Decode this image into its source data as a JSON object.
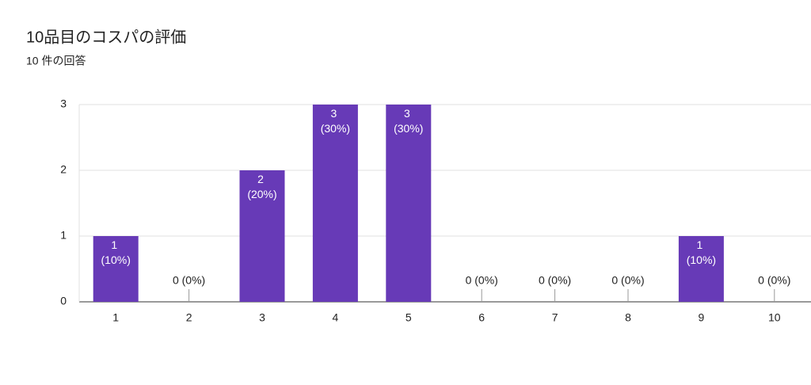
{
  "chart_data": {
    "type": "bar",
    "title": "10品目のコスパの評価",
    "subtitle": "10 件の回答",
    "categories": [
      "1",
      "2",
      "3",
      "4",
      "5",
      "6",
      "7",
      "8",
      "9",
      "10"
    ],
    "values": [
      1,
      0,
      2,
      3,
      3,
      0,
      0,
      0,
      1,
      0
    ],
    "value_labels": [
      "1 (10%)",
      "0 (0%)",
      "2 (20%)",
      "3 (30%)",
      "3 (30%)",
      "0 (0%)",
      "0 (0%)",
      "0 (0%)",
      "1 (10%)",
      "0 (0%)"
    ],
    "color": "#673ab7",
    "ylim": [
      0,
      3
    ],
    "yticks": [
      0,
      1,
      2,
      3
    ],
    "grid": true
  }
}
